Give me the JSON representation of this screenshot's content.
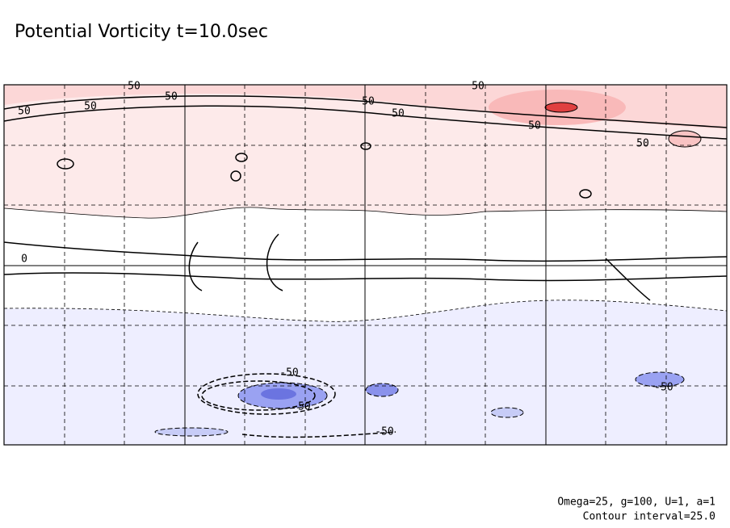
{
  "chart_data": {
    "type": "contour",
    "title": "Potential Vorticity t=10.0sec",
    "annotations": [
      "Omega=25, g=100, U=1, a=1",
      "Contour interval=25.0"
    ],
    "contour_labels": [
      50,
      50,
      50,
      50,
      50,
      50,
      50,
      50,
      50,
      0,
      -50,
      -50,
      -50,
      -50
    ]
  }
}
